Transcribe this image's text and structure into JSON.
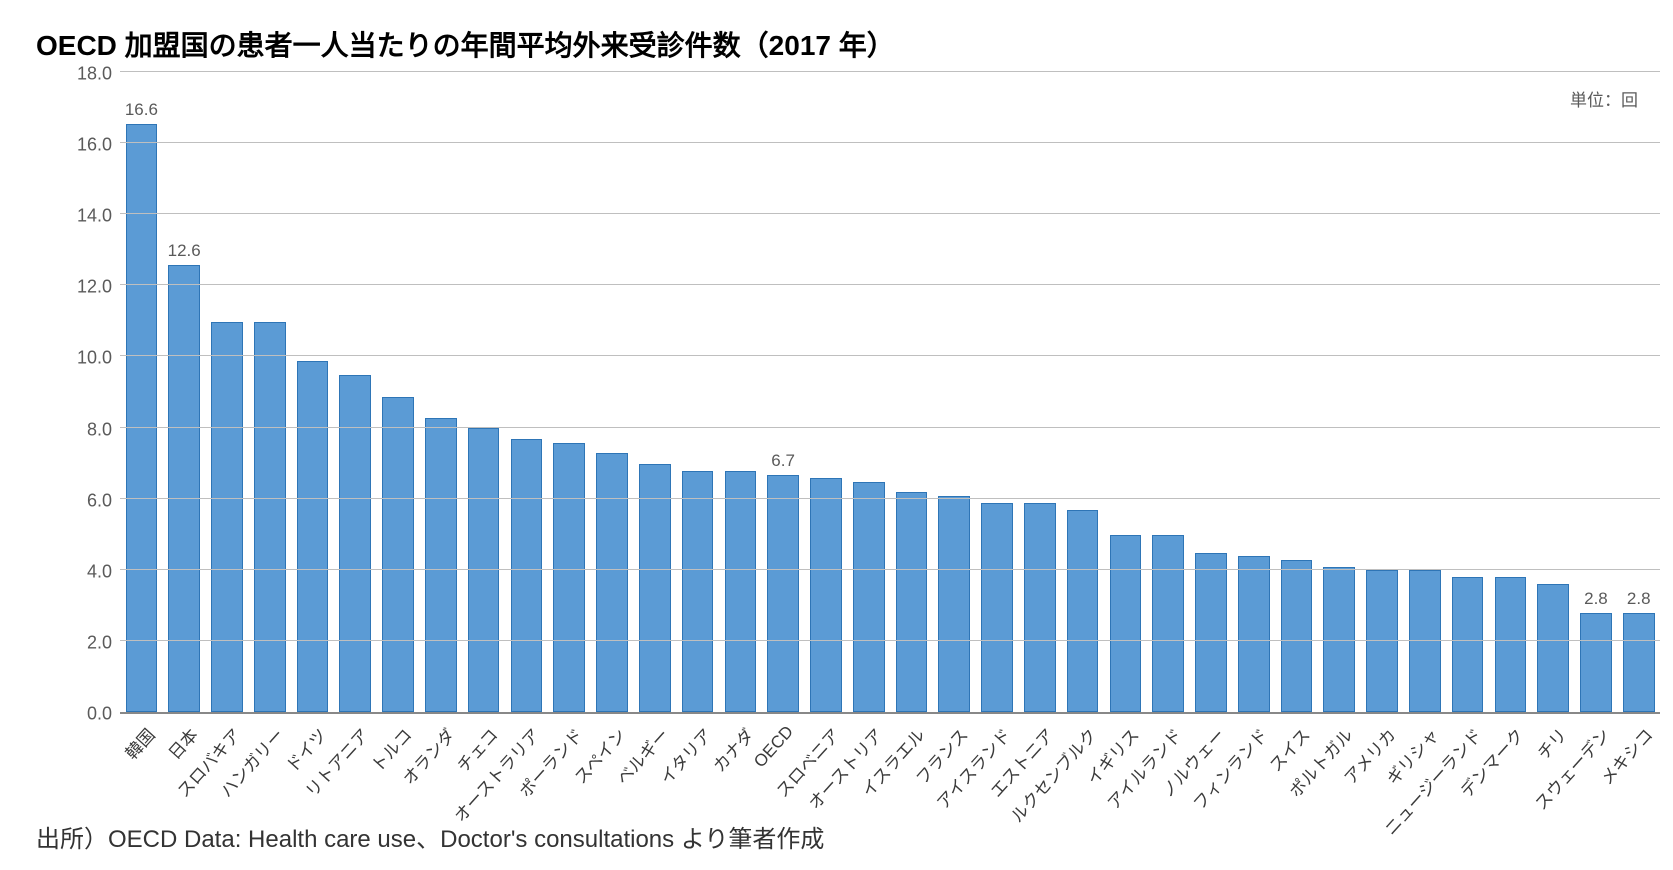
{
  "title": "OECD 加盟国の患者一人当たりの年間平均外来受診件数（2017 年）",
  "unit_label": "単位：回",
  "source": "出所）OECD Data: Health care use、Doctor's consultations より筆者作成",
  "chart": {
    "type": "bar",
    "ylim": [
      0,
      18
    ],
    "ytick_step": 2,
    "ytick_decimals": 1,
    "bar_color": "#5b9bd5",
    "bar_border_color": "#2e75b6",
    "bar_border_width": 1,
    "grid_color": "#bfbfbf",
    "axis_color": "#888888",
    "background_color": "#ffffff",
    "label_color": "#5a5a5a",
    "title_fontsize": 28,
    "label_fontsize": 17,
    "xlabel_fontsize": 17,
    "xlabel_rotation_deg": -48,
    "bar_width_ratio": 0.74,
    "categories": [
      "韓国",
      "日本",
      "スロバキア",
      "ハンガリー",
      "ドイツ",
      "リトアニア",
      "トルコ",
      "オランダ",
      "チェコ",
      "オーストラリア",
      "ポーランド",
      "スペイン",
      "ベルギー",
      "イタリア",
      "カナダ",
      "OECD",
      "スロベニア",
      "オーストリア",
      "イスラエル",
      "フランス",
      "アイスランド",
      "エストニア",
      "ルクセンブルク",
      "イギリス",
      "アイルランド",
      "ノルウェー",
      "フィンランド",
      "スイス",
      "ポルトガル",
      "アメリカ",
      "ギリシャ",
      "ニュージーランド",
      "デンマーク",
      "チリ",
      "スウェーデン",
      "メキシコ"
    ],
    "values": [
      16.6,
      12.6,
      11.0,
      11.0,
      9.9,
      9.5,
      8.9,
      8.3,
      8.0,
      7.7,
      7.6,
      7.3,
      7.0,
      6.8,
      6.8,
      6.7,
      6.6,
      6.5,
      6.2,
      6.1,
      5.9,
      5.9,
      5.7,
      5.0,
      5.0,
      4.5,
      4.4,
      4.3,
      4.1,
      4.0,
      4.0,
      3.8,
      3.8,
      3.6,
      2.8,
      2.8
    ],
    "value_labels_shown": {
      "0": "16.6",
      "1": "12.6",
      "15": "6.7",
      "34": "2.8",
      "35": "2.8"
    }
  }
}
